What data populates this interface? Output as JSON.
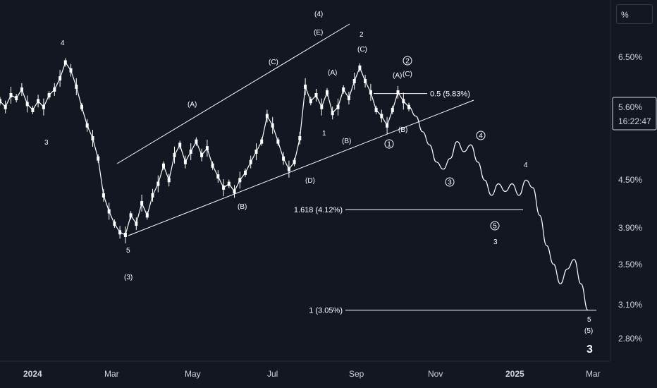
{
  "scale_button": {
    "label": "%"
  },
  "price_box": {
    "value": "5.60%",
    "countdown": "16:22:47"
  },
  "y_axis": {
    "labels": [
      "6.50%",
      "4.50%",
      "3.90%",
      "3.50%",
      "3.10%",
      "2.80%"
    ]
  },
  "x_axis": {
    "labels": [
      {
        "text": "2024",
        "bold": true
      },
      {
        "text": "Mar",
        "bold": false
      },
      {
        "text": "May",
        "bold": false
      },
      {
        "text": "Jul",
        "bold": false
      },
      {
        "text": "Sep",
        "bold": false
      },
      {
        "text": "Nov",
        "bold": false
      },
      {
        "text": "2025",
        "bold": true
      },
      {
        "text": "Mar",
        "bold": false
      }
    ]
  },
  "fib_levels": [
    {
      "label": "0.5 (5.83%)",
      "value": 5.83
    },
    {
      "label": "1.618 (4.12%)",
      "value": 4.12
    },
    {
      "label": "1 (3.05%)",
      "value": 3.05
    }
  ],
  "annotations": {
    "w4_top": "4",
    "w3_left": "3",
    "w5_low": "5",
    "w3_paren": "(3)",
    "a_first": "(A)",
    "b_first": "(B)",
    "c_first": "(C)",
    "d_label": "(D)",
    "e_label": "(E)",
    "w4_paren": "(4)",
    "one_label": "1",
    "two_label": "2",
    "a_second": "(A)",
    "b_second": "(B)",
    "c_second": "(C)",
    "circ1": "1",
    "circ2": "2",
    "a_third": "(A)",
    "c_third": "(C)",
    "b_third": "(B)",
    "circ3": "3",
    "circ4": "4",
    "circ5": "5",
    "proj_three": "3",
    "proj_four": "4",
    "final_five": "5",
    "final_five_paren": "(5)",
    "final_three": "3"
  },
  "colors": {
    "background": "#131722",
    "candles": "#ffffff",
    "lines": "#ffffff",
    "axis_text": "#d1d4dc"
  },
  "chart_data": {
    "type": "line",
    "unit": "%",
    "x_labels": [
      "2024",
      "Mar",
      "May",
      "Jul",
      "Sep",
      "Nov",
      "2025",
      "Mar"
    ],
    "series": [
      {
        "values": [
          5.7,
          5.6,
          5.8,
          5.75,
          5.9,
          5.65,
          5.55,
          5.7,
          5.6,
          5.8,
          5.9,
          6.1,
          6.4,
          6.25,
          5.95,
          5.6,
          5.3,
          5.1,
          4.8,
          4.3,
          4.1,
          3.95,
          3.85,
          3.82,
          4.05,
          3.95,
          4.2,
          4.05,
          4.3,
          4.45,
          4.7,
          4.5,
          4.85,
          5.0,
          4.75,
          4.9,
          5.05,
          4.85,
          4.95,
          4.7,
          4.55,
          4.4,
          4.45,
          4.35,
          4.5,
          4.6,
          4.75,
          4.9,
          5.05,
          5.45,
          5.3,
          5.05,
          4.8,
          4.65,
          4.75,
          5.1,
          5.95,
          5.7,
          5.8,
          5.6,
          5.85,
          5.5,
          5.6,
          5.9,
          5.75,
          6.05,
          6.3,
          6.05,
          5.85,
          5.55,
          5.45,
          5.3,
          5.55,
          5.85,
          5.7,
          5.6
        ]
      },
      {
        "values": [
          5.6,
          5.45,
          5.2,
          5.0,
          4.75,
          4.65,
          4.8,
          5.05,
          4.9,
          5.0,
          4.75,
          4.5,
          4.3,
          4.45,
          4.35,
          4.45,
          4.3,
          4.5,
          4.4,
          4.05,
          3.7,
          3.5,
          3.3,
          3.45,
          3.55,
          3.3,
          3.05
        ]
      }
    ],
    "fib_levels": [
      5.83,
      4.12,
      3.05
    ],
    "ylim": [
      2.6,
      8.0
    ],
    "log_scale": true,
    "grid": false
  }
}
